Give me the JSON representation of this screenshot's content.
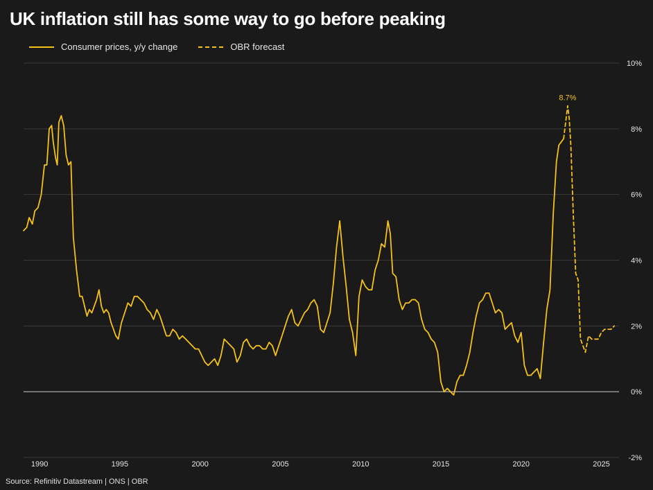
{
  "title": "UK inflation still has some way to go before peaking",
  "source": "Source: Refinitiv Datastream | ONS | OBR",
  "colors": {
    "background": "#1a1a1a",
    "series": "#f5c21b",
    "grid": "#3a3a3a",
    "zero": "#bdbdbd",
    "text": "#e6e6e6"
  },
  "chart_data": {
    "type": "line",
    "title": "UK inflation still has some way to go before peaking",
    "xlim": [
      1989,
      2026.1
    ],
    "ylim": [
      -2,
      10
    ],
    "x_ticks": [
      1990,
      1995,
      2000,
      2005,
      2010,
      2015,
      2020,
      2025
    ],
    "x_tick_labels": [
      "1990",
      "1995",
      "2000",
      "2005",
      "2010",
      "2015",
      "2020",
      "2025"
    ],
    "y_ticks": [
      -2,
      0,
      2,
      4,
      6,
      8,
      10
    ],
    "y_tick_labels": [
      "-2%",
      "0%",
      "2%",
      "4%",
      "6%",
      "8%",
      "10%"
    ],
    "y_axis_side": "right",
    "grid": true,
    "legend_position": "top-left",
    "annotation": {
      "text": "8.7%",
      "x": 2022.9,
      "y": 8.7
    },
    "series": [
      {
        "name": "Consumer prices, y/y change",
        "style": "solid",
        "points": [
          [
            1989.0,
            4.9
          ],
          [
            1989.2,
            5.0
          ],
          [
            1989.35,
            5.3
          ],
          [
            1989.55,
            5.1
          ],
          [
            1989.7,
            5.5
          ],
          [
            1989.9,
            5.6
          ],
          [
            1990.1,
            6.0
          ],
          [
            1990.3,
            6.9
          ],
          [
            1990.45,
            6.9
          ],
          [
            1990.6,
            8.0
          ],
          [
            1990.75,
            8.1
          ],
          [
            1990.85,
            7.6
          ],
          [
            1991.0,
            7.1
          ],
          [
            1991.1,
            6.9
          ],
          [
            1991.2,
            8.2
          ],
          [
            1991.35,
            8.4
          ],
          [
            1991.5,
            8.1
          ],
          [
            1991.65,
            7.2
          ],
          [
            1991.8,
            6.9
          ],
          [
            1991.95,
            7.0
          ],
          [
            1992.1,
            4.7
          ],
          [
            1992.3,
            3.7
          ],
          [
            1992.5,
            2.9
          ],
          [
            1992.65,
            2.9
          ],
          [
            1992.8,
            2.6
          ],
          [
            1992.95,
            2.3
          ],
          [
            1993.1,
            2.5
          ],
          [
            1993.25,
            2.4
          ],
          [
            1993.4,
            2.6
          ],
          [
            1993.55,
            2.8
          ],
          [
            1993.7,
            3.1
          ],
          [
            1993.85,
            2.6
          ],
          [
            1994.0,
            2.4
          ],
          [
            1994.15,
            2.5
          ],
          [
            1994.3,
            2.4
          ],
          [
            1994.45,
            2.1
          ],
          [
            1994.6,
            1.9
          ],
          [
            1994.75,
            1.7
          ],
          [
            1994.9,
            1.6
          ],
          [
            1995.1,
            2.1
          ],
          [
            1995.3,
            2.4
          ],
          [
            1995.5,
            2.7
          ],
          [
            1995.7,
            2.6
          ],
          [
            1995.9,
            2.9
          ],
          [
            1996.1,
            2.9
          ],
          [
            1996.3,
            2.8
          ],
          [
            1996.5,
            2.7
          ],
          [
            1996.7,
            2.5
          ],
          [
            1996.9,
            2.4
          ],
          [
            1997.1,
            2.2
          ],
          [
            1997.3,
            2.5
          ],
          [
            1997.5,
            2.3
          ],
          [
            1997.7,
            2.0
          ],
          [
            1997.9,
            1.7
          ],
          [
            1998.1,
            1.7
          ],
          [
            1998.3,
            1.9
          ],
          [
            1998.5,
            1.8
          ],
          [
            1998.7,
            1.6
          ],
          [
            1998.9,
            1.7
          ],
          [
            1999.1,
            1.6
          ],
          [
            1999.3,
            1.5
          ],
          [
            1999.5,
            1.4
          ],
          [
            1999.7,
            1.3
          ],
          [
            1999.9,
            1.3
          ],
          [
            2000.1,
            1.1
          ],
          [
            2000.3,
            0.9
          ],
          [
            2000.5,
            0.8
          ],
          [
            2000.7,
            0.9
          ],
          [
            2000.9,
            1.0
          ],
          [
            2001.1,
            0.8
          ],
          [
            2001.3,
            1.1
          ],
          [
            2001.5,
            1.6
          ],
          [
            2001.7,
            1.5
          ],
          [
            2001.9,
            1.4
          ],
          [
            2002.1,
            1.3
          ],
          [
            2002.3,
            0.9
          ],
          [
            2002.5,
            1.1
          ],
          [
            2002.7,
            1.5
          ],
          [
            2002.9,
            1.6
          ],
          [
            2003.1,
            1.4
          ],
          [
            2003.3,
            1.3
          ],
          [
            2003.5,
            1.4
          ],
          [
            2003.7,
            1.4
          ],
          [
            2003.9,
            1.3
          ],
          [
            2004.1,
            1.3
          ],
          [
            2004.3,
            1.5
          ],
          [
            2004.5,
            1.4
          ],
          [
            2004.7,
            1.1
          ],
          [
            2004.9,
            1.4
          ],
          [
            2005.1,
            1.7
          ],
          [
            2005.3,
            2.0
          ],
          [
            2005.5,
            2.3
          ],
          [
            2005.7,
            2.5
          ],
          [
            2005.9,
            2.1
          ],
          [
            2006.1,
            2.0
          ],
          [
            2006.3,
            2.2
          ],
          [
            2006.5,
            2.4
          ],
          [
            2006.7,
            2.5
          ],
          [
            2006.9,
            2.7
          ],
          [
            2007.1,
            2.8
          ],
          [
            2007.3,
            2.6
          ],
          [
            2007.5,
            1.9
          ],
          [
            2007.7,
            1.8
          ],
          [
            2007.9,
            2.1
          ],
          [
            2008.1,
            2.4
          ],
          [
            2008.3,
            3.3
          ],
          [
            2008.5,
            4.4
          ],
          [
            2008.7,
            5.2
          ],
          [
            2008.9,
            4.1
          ],
          [
            2009.1,
            3.2
          ],
          [
            2009.3,
            2.2
          ],
          [
            2009.5,
            1.8
          ],
          [
            2009.7,
            1.1
          ],
          [
            2009.9,
            2.9
          ],
          [
            2010.1,
            3.4
          ],
          [
            2010.3,
            3.2
          ],
          [
            2010.5,
            3.1
          ],
          [
            2010.7,
            3.1
          ],
          [
            2010.9,
            3.7
          ],
          [
            2011.1,
            4.0
          ],
          [
            2011.3,
            4.5
          ],
          [
            2011.5,
            4.4
          ],
          [
            2011.7,
            5.2
          ],
          [
            2011.85,
            4.8
          ],
          [
            2012.0,
            3.6
          ],
          [
            2012.2,
            3.5
          ],
          [
            2012.4,
            2.8
          ],
          [
            2012.6,
            2.5
          ],
          [
            2012.8,
            2.7
          ],
          [
            2013.0,
            2.7
          ],
          [
            2013.2,
            2.8
          ],
          [
            2013.4,
            2.8
          ],
          [
            2013.6,
            2.7
          ],
          [
            2013.8,
            2.2
          ],
          [
            2014.0,
            1.9
          ],
          [
            2014.2,
            1.8
          ],
          [
            2014.4,
            1.6
          ],
          [
            2014.6,
            1.5
          ],
          [
            2014.8,
            1.2
          ],
          [
            2015.0,
            0.3
          ],
          [
            2015.2,
            0.0
          ],
          [
            2015.4,
            0.1
          ],
          [
            2015.6,
            0.0
          ],
          [
            2015.8,
            -0.1
          ],
          [
            2016.0,
            0.3
          ],
          [
            2016.2,
            0.5
          ],
          [
            2016.4,
            0.5
          ],
          [
            2016.6,
            0.8
          ],
          [
            2016.8,
            1.2
          ],
          [
            2017.0,
            1.8
          ],
          [
            2017.2,
            2.3
          ],
          [
            2017.4,
            2.7
          ],
          [
            2017.6,
            2.8
          ],
          [
            2017.8,
            3.0
          ],
          [
            2018.0,
            3.0
          ],
          [
            2018.2,
            2.7
          ],
          [
            2018.4,
            2.4
          ],
          [
            2018.6,
            2.5
          ],
          [
            2018.8,
            2.4
          ],
          [
            2019.0,
            1.9
          ],
          [
            2019.2,
            2.0
          ],
          [
            2019.4,
            2.1
          ],
          [
            2019.6,
            1.7
          ],
          [
            2019.8,
            1.5
          ],
          [
            2020.0,
            1.8
          ],
          [
            2020.2,
            0.8
          ],
          [
            2020.4,
            0.5
          ],
          [
            2020.6,
            0.5
          ],
          [
            2020.8,
            0.6
          ],
          [
            2021.0,
            0.7
          ],
          [
            2021.2,
            0.4
          ],
          [
            2021.4,
            1.5
          ],
          [
            2021.6,
            2.5
          ],
          [
            2021.8,
            3.1
          ],
          [
            2022.0,
            5.4
          ],
          [
            2022.1,
            6.2
          ],
          [
            2022.2,
            7.0
          ],
          [
            2022.35,
            7.5
          ],
          [
            2022.5,
            7.6
          ],
          [
            2022.65,
            7.7
          ]
        ]
      },
      {
        "name": "OBR forecast",
        "style": "dashed",
        "points": [
          [
            2022.65,
            7.7
          ],
          [
            2022.8,
            8.3
          ],
          [
            2022.9,
            8.7
          ],
          [
            2023.0,
            8.3
          ],
          [
            2023.1,
            7.5
          ],
          [
            2023.25,
            5.4
          ],
          [
            2023.4,
            3.6
          ],
          [
            2023.55,
            3.4
          ],
          [
            2023.7,
            1.6
          ],
          [
            2023.85,
            1.4
          ],
          [
            2024.0,
            1.2
          ],
          [
            2024.2,
            1.7
          ],
          [
            2024.4,
            1.6
          ],
          [
            2024.6,
            1.6
          ],
          [
            2024.8,
            1.6
          ],
          [
            2025.0,
            1.8
          ],
          [
            2025.2,
            1.9
          ],
          [
            2025.4,
            1.9
          ],
          [
            2025.6,
            1.9
          ],
          [
            2025.8,
            2.0
          ]
        ]
      }
    ]
  }
}
